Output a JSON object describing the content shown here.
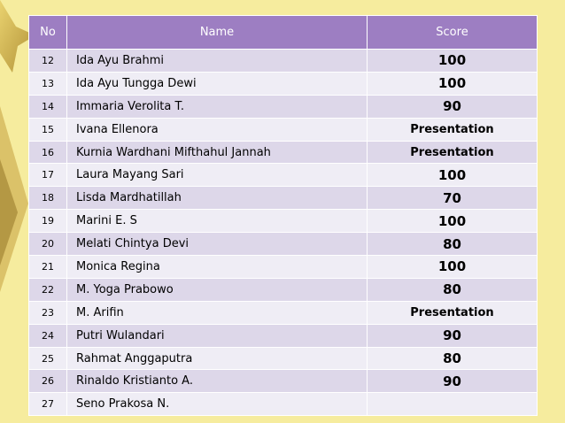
{
  "table": {
    "header": [
      "No",
      "Name",
      "Score"
    ],
    "rows": [
      [
        "12",
        "Ida Ayu Brahmi",
        "100"
      ],
      [
        "13",
        "Ida Ayu Tungga Dewi",
        "100"
      ],
      [
        "14",
        "Immaria Verolita T.",
        "90"
      ],
      [
        "15",
        "Ivana Ellenora",
        "Presentation"
      ],
      [
        "16",
        "Kurnia Wardhani Mifthahul Jannah",
        "Presentation"
      ],
      [
        "17",
        "Laura Mayang Sari",
        "100"
      ],
      [
        "18",
        "Lisda Mardhatillah",
        "70"
      ],
      [
        "19",
        "Marini E. S",
        "100"
      ],
      [
        "20",
        "Melati Chintya Devi",
        "80"
      ],
      [
        "21",
        "Monica Regina",
        "100"
      ],
      [
        "22",
        "M. Yoga Prabowo",
        "80"
      ],
      [
        "23",
        "M. Arifin",
        "Presentation"
      ],
      [
        "24",
        "Putri Wulandari",
        "90"
      ],
      [
        "25",
        "Rahmat Anggaputra",
        "80"
      ],
      [
        "26",
        "Rinaldo Kristianto A.",
        "90"
      ],
      [
        "27",
        "Seno Prakosa N."
      ]
    ]
  }
}
